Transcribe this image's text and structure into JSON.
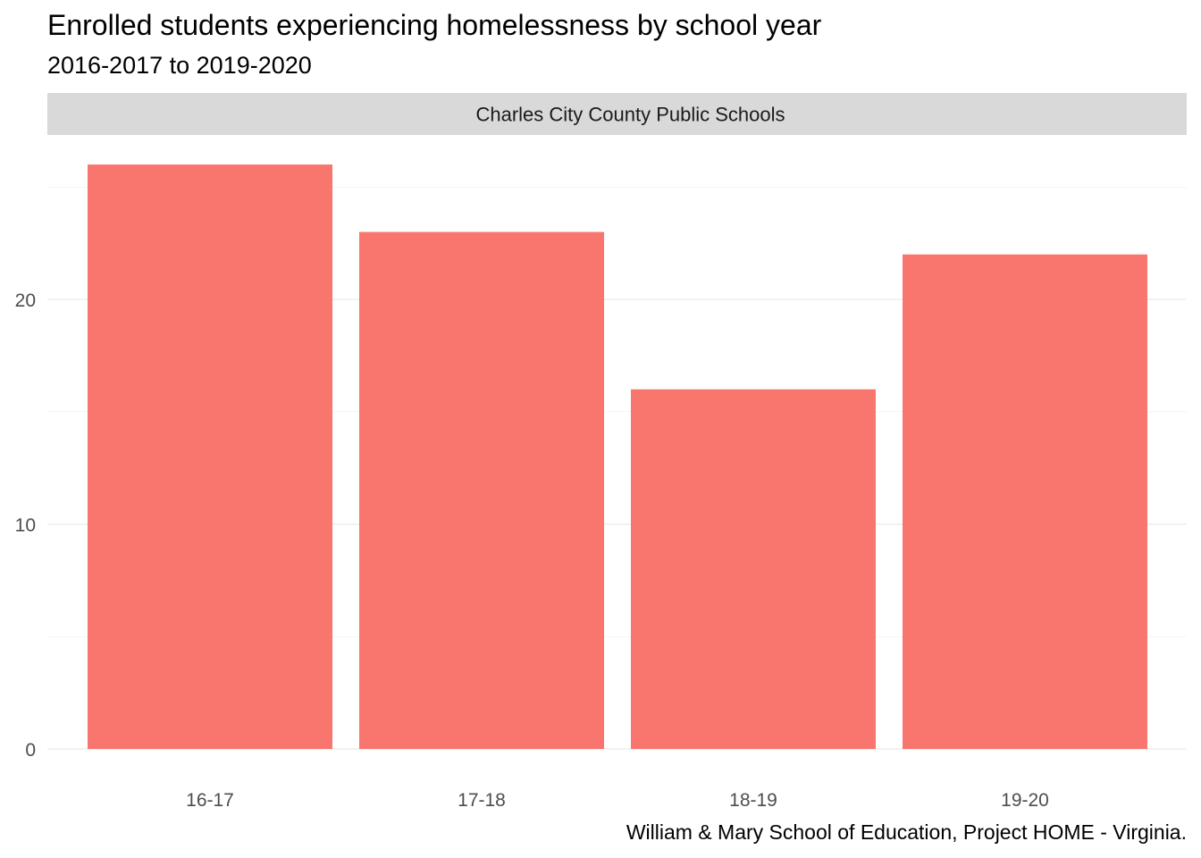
{
  "chart_data": {
    "type": "bar",
    "title": "Enrolled students experiencing homelessness by school year",
    "subtitle": "2016-2017 to 2019-2020",
    "caption": "William & Mary School of Education, Project HOME - Virginia.",
    "facet_label": "Charles City County Public Schools",
    "categories": [
      "16-17",
      "17-18",
      "18-19",
      "19-20"
    ],
    "values": [
      26,
      23,
      16,
      22
    ],
    "xlabel": "",
    "ylabel": "",
    "ylim": [
      0,
      27.3
    ],
    "yticks": [
      0,
      10,
      20
    ],
    "grid": true,
    "legend": "none",
    "bar_color": "#F8766D",
    "strip_color": "#D9D9D9",
    "grid_color": "#EBEBEB"
  }
}
